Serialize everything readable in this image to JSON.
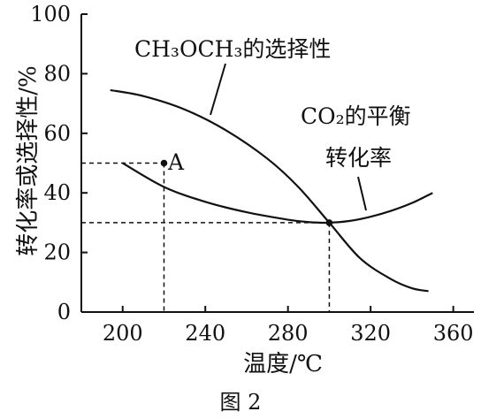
{
  "chart_data": {
    "type": "line",
    "xlabel": "温度/℃",
    "ylabel": "转化率或选择性/%",
    "caption": "图 2",
    "xlim": [
      180,
      370
    ],
    "ylim": [
      0,
      100
    ],
    "x_ticks": [
      "200",
      "240",
      "280",
      "320",
      "360"
    ],
    "y_ticks": [
      "0",
      "20",
      "40",
      "60",
      "80",
      "100"
    ],
    "grid": false,
    "series": [
      {
        "name": "CH3OCH3的选择性",
        "x": [
          194,
          210,
          230,
          250,
          270,
          285,
          300,
          315,
          330,
          340,
          348
        ],
        "y": [
          74.5,
          72.5,
          68,
          61,
          51.5,
          42,
          30,
          18,
          11,
          8,
          7
        ]
      },
      {
        "name": "CO2的平衡转化率",
        "x": [
          200,
          220,
          240,
          260,
          280,
          290,
          300,
          310,
          320,
          330,
          340,
          350
        ],
        "y": [
          50,
          42,
          37,
          33.5,
          31,
          30.2,
          30,
          30.6,
          32,
          34,
          36.6,
          40
        ]
      }
    ],
    "annotations": [
      {
        "text": "CH₃OCH₃的选择性"
      },
      {
        "text": "CO₂的平衡"
      },
      {
        "text": "转化率"
      },
      {
        "text": "A",
        "x": 220,
        "y": 50
      },
      {
        "text": "",
        "x": 300,
        "y": 30
      }
    ]
  }
}
